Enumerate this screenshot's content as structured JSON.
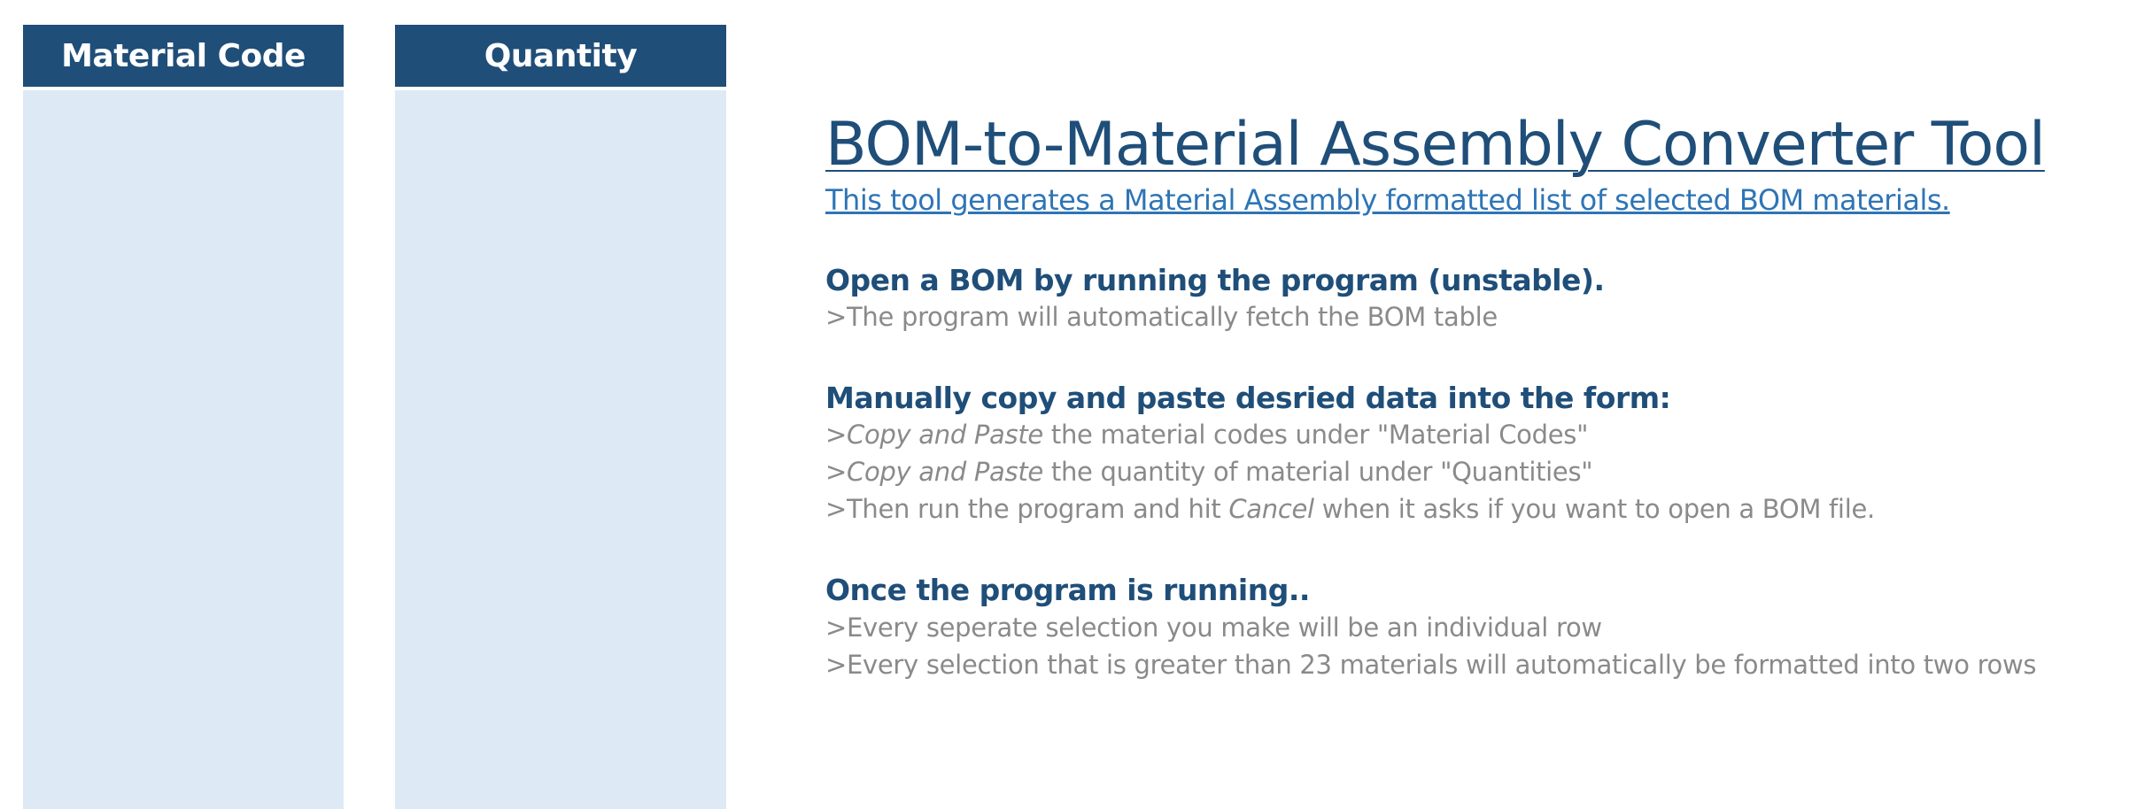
{
  "columns": {
    "material_code": {
      "header": "Material Code"
    },
    "quantity": {
      "header": "Quantity"
    }
  },
  "info": {
    "title": "BOM-to-Material Assembly Converter Tool",
    "subtitle": "This tool generates a Material Assembly formatted list of selected BOM materials.",
    "sections": [
      {
        "heading": "Open a BOM by running the program (unstable).",
        "lines": [
          {
            "prefix": ">",
            "text": "The program will automatically fetch the BOM table"
          }
        ]
      },
      {
        "heading": "Manually copy and paste desried data into the form:",
        "lines": [
          {
            "prefix": ">",
            "em": "Copy and Paste",
            "text": " the material codes under \"Material Codes\""
          },
          {
            "prefix": ">",
            "em": "Copy and Paste",
            "text": " the quantity of material under \"Quantities\""
          },
          {
            "prefix": ">",
            "pre": "Then run the program and hit ",
            "em": "Cancel",
            "text": " when it asks if you want to open a BOM file."
          }
        ]
      },
      {
        "heading": "Once the program is running..",
        "lines": [
          {
            "prefix": ">",
            "text": "Every seperate selection you make will be an individual row"
          },
          {
            "prefix": ">",
            "text": "Every selection that is greater than 23 materials will automatically be formatted into two rows"
          }
        ]
      }
    ]
  },
  "colors": {
    "header_bg": "#1f4e79",
    "column_bg": "#ddeaf6",
    "title": "#1f4e79",
    "subtitle_link": "#2e75b6",
    "body_text": "#8a8a8a"
  }
}
